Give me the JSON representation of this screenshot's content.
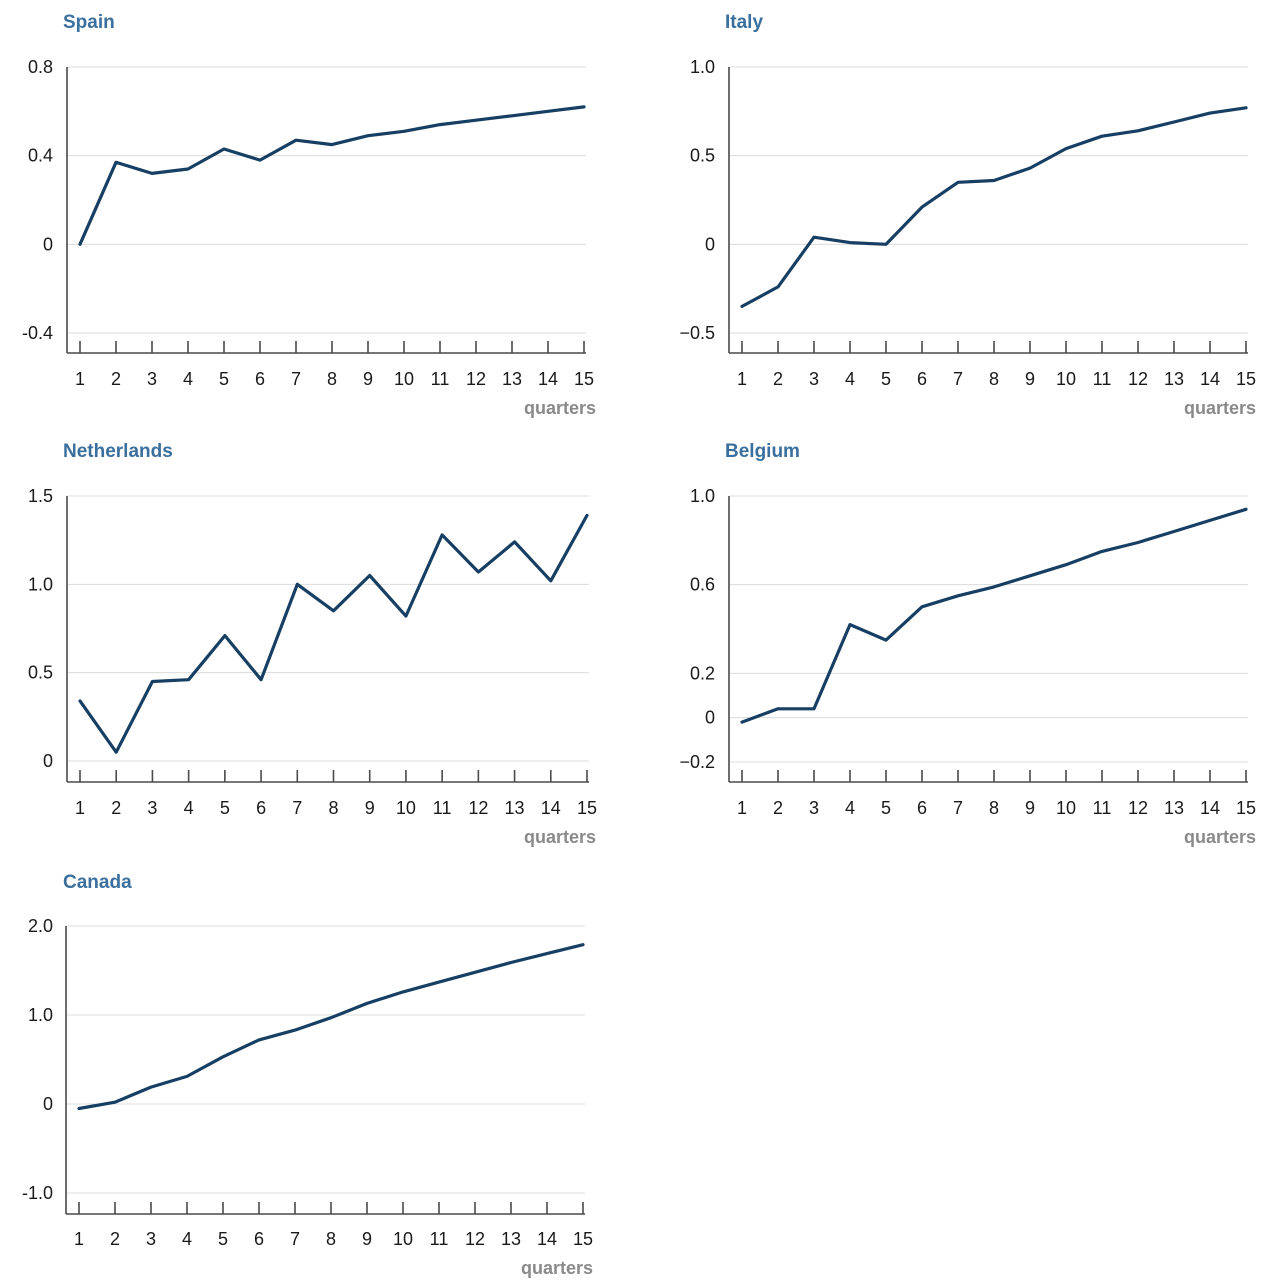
{
  "colors": {
    "title": "#3a6f9e",
    "series": "#163f63",
    "grid": "#dcdcdc",
    "axis": "#4a4a4a",
    "xlabel": "#8a8a8a"
  },
  "chart_data": [
    {
      "type": "line",
      "title": "Spain",
      "xlabel": "quarters",
      "ylabel": "",
      "x": [
        1,
        2,
        3,
        4,
        5,
        6,
        7,
        8,
        9,
        10,
        11,
        12,
        13,
        14,
        15
      ],
      "ylim": [
        -0.4,
        0.8
      ],
      "yticks": [
        -0.4,
        0,
        0.4,
        0.8
      ],
      "ytick_labels": [
        "-0.4",
        "0",
        "0.4",
        "0.8"
      ],
      "grid": true,
      "series": [
        {
          "values": [
            0.0,
            0.37,
            0.32,
            0.34,
            0.43,
            0.38,
            0.47,
            0.45,
            0.49,
            0.51,
            0.54,
            0.56,
            0.58,
            0.6,
            0.62
          ]
        }
      ]
    },
    {
      "type": "line",
      "title": "Italy",
      "xlabel": "quarters",
      "ylabel": "",
      "x": [
        1,
        2,
        3,
        4,
        5,
        6,
        7,
        8,
        9,
        10,
        11,
        12,
        13,
        14,
        15
      ],
      "ylim": [
        -0.5,
        1.0
      ],
      "yticks": [
        -0.5,
        0,
        0.5,
        1.0
      ],
      "ytick_labels": [
        "−0.5",
        "0",
        "0.5",
        "1.0"
      ],
      "grid": true,
      "series": [
        {
          "values": [
            -0.35,
            -0.24,
            0.04,
            0.01,
            0.0,
            0.21,
            0.35,
            0.36,
            0.43,
            0.54,
            0.61,
            0.64,
            0.69,
            0.74,
            0.77
          ]
        }
      ]
    },
    {
      "type": "line",
      "title": "Netherlands",
      "xlabel": "quarters",
      "ylabel": "",
      "x": [
        1,
        2,
        3,
        4,
        5,
        6,
        7,
        8,
        9,
        10,
        11,
        12,
        13,
        14,
        15
      ],
      "ylim": [
        0,
        1.5
      ],
      "yticks": [
        0,
        0.5,
        1.0,
        1.5
      ],
      "ytick_labels": [
        "0",
        "0.5",
        "1.0",
        "1.5"
      ],
      "grid": true,
      "series": [
        {
          "values": [
            0.34,
            0.05,
            0.45,
            0.46,
            0.71,
            0.46,
            1.0,
            0.85,
            1.05,
            0.82,
            1.28,
            1.07,
            1.24,
            1.02,
            1.39
          ]
        }
      ]
    },
    {
      "type": "line",
      "title": "Belgium",
      "xlabel": "quarters",
      "ylabel": "",
      "x": [
        1,
        2,
        3,
        4,
        5,
        6,
        7,
        8,
        9,
        10,
        11,
        12,
        13,
        14,
        15
      ],
      "ylim": [
        -0.2,
        1.0
      ],
      "yticks": [
        -0.2,
        0,
        0.2,
        0.6,
        1.0
      ],
      "ytick_labels": [
        "−0.2",
        "0",
        "0.2",
        "0.6",
        "1.0"
      ],
      "grid": true,
      "series": [
        {
          "values": [
            -0.02,
            0.04,
            0.04,
            0.42,
            0.35,
            0.5,
            0.55,
            0.59,
            0.64,
            0.69,
            0.75,
            0.79,
            0.84,
            0.89,
            0.94
          ]
        }
      ]
    },
    {
      "type": "line",
      "title": "Canada",
      "xlabel": "quarters",
      "ylabel": "",
      "x": [
        1,
        2,
        3,
        4,
        5,
        6,
        7,
        8,
        9,
        10,
        11,
        12,
        13,
        14,
        15
      ],
      "ylim": [
        -1.0,
        2.0
      ],
      "yticks": [
        -1.0,
        0,
        1.0,
        2.0
      ],
      "ytick_labels": [
        "-1.0",
        "0",
        "1.0",
        "2.0"
      ],
      "grid": true,
      "series": [
        {
          "values": [
            -0.05,
            0.02,
            0.19,
            0.31,
            0.53,
            0.72,
            0.83,
            0.97,
            1.13,
            1.26,
            1.37,
            1.48,
            1.59,
            1.69,
            1.79
          ]
        }
      ]
    }
  ]
}
